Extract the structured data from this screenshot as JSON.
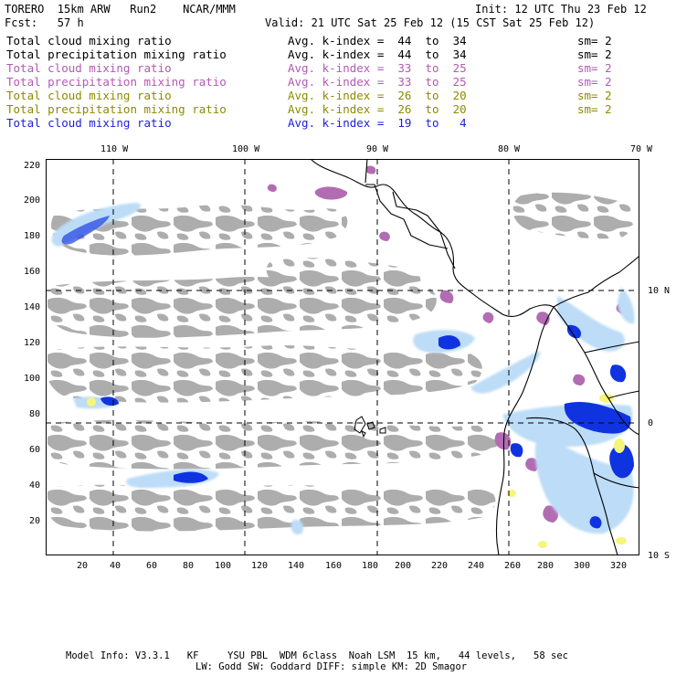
{
  "header": {
    "model": "TORERO  15km ARW   Run2    NCAR/MMM",
    "init": "Init: 12 UTC Thu 23 Feb 12",
    "fcst": "Fcst:   57 h",
    "valid": "Valid: 21 UTC Sat 25 Feb 12 (15 CST Sat 25 Feb 12)"
  },
  "legend": [
    {
      "field": "Total cloud mixing ratio",
      "kindex": "Avg. k-index =  44  to  34",
      "sm": "sm= 2",
      "color": "#000000"
    },
    {
      "field": "Total precipitation mixing ratio",
      "kindex": "Avg. k-index =  44  to  34",
      "sm": "sm= 2",
      "color": "#000000"
    },
    {
      "field": "Total cloud mixing ratio",
      "kindex": "Avg. k-index =  33  to  25",
      "sm": "sm= 2",
      "color": "#b25ab2"
    },
    {
      "field": "Total precipitation mixing ratio",
      "kindex": "Avg. k-index =  33  to  25",
      "sm": "sm= 2",
      "color": "#b25ab2"
    },
    {
      "field": "Total cloud mixing ratio",
      "kindex": "Avg. k-index =  26  to  20",
      "sm": "sm= 2",
      "color": "#8c8c00"
    },
    {
      "field": "Total precipitation mixing ratio",
      "kindex": "Avg. k-index =  26  to  20",
      "sm": "sm= 2",
      "color": "#8c8c00"
    },
    {
      "field": "Total cloud mixing ratio",
      "kindex": "Avg. k-index =  19  to   4",
      "sm": "",
      "color": "#1e1edc"
    }
  ],
  "axes": {
    "lon_labels": [
      "110 W",
      "100 W",
      "90 W",
      "80 W",
      "70 W"
    ],
    "lat_labels": [
      "10 N",
      "0",
      "10 S"
    ],
    "y_ticks": [
      "220",
      "200",
      "180",
      "160",
      "140",
      "120",
      "100",
      "80",
      "60",
      "40",
      "20"
    ],
    "x_ticks": [
      "20",
      "40",
      "60",
      "80",
      "100",
      "120",
      "140",
      "160",
      "180",
      "200",
      "220",
      "240",
      "260",
      "280",
      "300",
      "320"
    ]
  },
  "footer": {
    "line1": "Model Info: V3.3.1   KF     YSU PBL  WDM 6class  Noah LSM  15 km,   44 levels,   58 sec",
    "line2": "LW: Godd SW: Goddard DIFF: simple KM: 2D Smagor"
  },
  "colors": {
    "cloud_gray": "#a9a9a9",
    "purple": "#b26db2",
    "blue_dark": "#1033e0",
    "blue_light": "#bcdcf7",
    "yellow": "#f5f57a"
  }
}
